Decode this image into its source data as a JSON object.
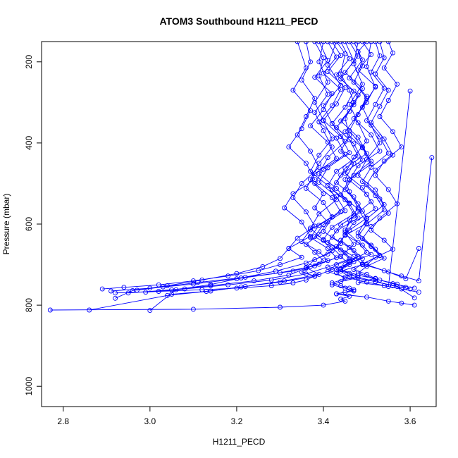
{
  "chart_data": {
    "type": "line",
    "title": "ATOM3 Southbound H1211_PECD",
    "xlabel": "H1211_PECD",
    "ylabel": "Pressure (mbar)",
    "xlim": [
      2.75,
      3.66
    ],
    "ylim": [
      1050,
      150
    ],
    "y_reversed": true,
    "x_ticks": [
      "2.8",
      "3.0",
      "3.2",
      "3.4",
      "3.6"
    ],
    "y_ticks": [
      "200",
      "400",
      "600",
      "800",
      "1000"
    ],
    "line_color": "#0000ff",
    "marker": "open-circle",
    "grid": false,
    "legend": "none",
    "series": [
      {
        "x": [
          3.43,
          3.45,
          3.44,
          3.46,
          3.47,
          3.45,
          3.46,
          3.44,
          3.47,
          3.45,
          3.46,
          3.48,
          3.46,
          3.45,
          3.47,
          3.44,
          3.46,
          3.43,
          3.45,
          3.42,
          3.44,
          3.46,
          3.47,
          3.45,
          3.43,
          3.46,
          3.44,
          3.45,
          3.4,
          3.3,
          3.1,
          2.77
        ],
        "y": [
          150,
          180,
          230,
          270,
          300,
          340,
          380,
          420,
          450,
          490,
          520,
          560,
          590,
          620,
          650,
          680,
          700,
          720,
          735,
          745,
          752,
          758,
          762,
          768,
          772,
          778,
          785,
          790,
          800,
          805,
          810,
          812
        ]
      },
      {
        "x": [
          3.5,
          3.48,
          3.49,
          3.47,
          3.5,
          3.48,
          3.46,
          3.49,
          3.51,
          3.47,
          3.45,
          3.48,
          3.5,
          3.46,
          3.44,
          3.47,
          3.49,
          3.45,
          3.43,
          3.46,
          3.48,
          3.44,
          3.42,
          3.45,
          3.47,
          3.43,
          3.5,
          3.55,
          3.58,
          3.61
        ],
        "y": [
          150,
          175,
          210,
          250,
          290,
          330,
          370,
          410,
          445,
          480,
          515,
          550,
          585,
          615,
          640,
          665,
          685,
          700,
          712,
          722,
          732,
          742,
          750,
          758,
          765,
          772,
          780,
          790,
          795,
          800
        ]
      },
      {
        "x": [
          3.38,
          3.4,
          3.39,
          3.41,
          3.38,
          3.4,
          3.42,
          3.39,
          3.37,
          3.4,
          3.38,
          3.41,
          3.39,
          3.36,
          3.38,
          3.4,
          3.37,
          3.35,
          3.38,
          3.36,
          3.33,
          3.28,
          3.2,
          3.12,
          3.02,
          2.92
        ],
        "y": [
          150,
          190,
          235,
          280,
          325,
          370,
          410,
          450,
          490,
          525,
          560,
          595,
          625,
          650,
          670,
          690,
          705,
          718,
          728,
          738,
          745,
          752,
          758,
          762,
          766,
          770
        ]
      },
      {
        "x": [
          3.52,
          3.53,
          3.51,
          3.54,
          3.52,
          3.5,
          3.53,
          3.55,
          3.51,
          3.49,
          3.52,
          3.54,
          3.5,
          3.48,
          3.51,
          3.53,
          3.49,
          3.47,
          3.5,
          3.52,
          3.48,
          3.54,
          3.58,
          3.62
        ],
        "y": [
          150,
          185,
          225,
          265,
          305,
          345,
          385,
          425,
          460,
          495,
          530,
          565,
          600,
          630,
          655,
          678,
          698,
          712,
          724,
          734,
          744,
          752,
          760,
          768
        ]
      },
      {
        "x": [
          3.36,
          3.37,
          3.35,
          3.38,
          3.36,
          3.34,
          3.37,
          3.39,
          3.35,
          3.33,
          3.36,
          3.38,
          3.34,
          3.32,
          3.35,
          3.3,
          3.25,
          3.18,
          3.1,
          3.02,
          2.94,
          2.89
        ],
        "y": [
          150,
          200,
          245,
          290,
          335,
          380,
          420,
          460,
          500,
          535,
          570,
          605,
          635,
          660,
          682,
          700,
          715,
          728,
          740,
          750,
          756,
          760
        ]
      },
      {
        "x": [
          3.47,
          3.49,
          3.46,
          3.5,
          3.48,
          3.45,
          3.49,
          3.51,
          3.46,
          3.44,
          3.48,
          3.5,
          3.45,
          3.43,
          3.47,
          3.49,
          3.44,
          3.46,
          3.52,
          3.56,
          3.6
        ],
        "y": [
          150,
          195,
          240,
          285,
          330,
          372,
          412,
          452,
          490,
          528,
          563,
          598,
          628,
          655,
          680,
          700,
          716,
          730,
          742,
          752,
          760
        ]
      },
      {
        "x": [
          3.41,
          3.43,
          3.4,
          3.44,
          3.42,
          3.39,
          3.43,
          3.45,
          3.4,
          3.38,
          3.42,
          3.44,
          3.39,
          3.37,
          3.41,
          3.43,
          3.38,
          3.3,
          3.2,
          3.1,
          3.0,
          2.91
        ],
        "y": [
          150,
          188,
          228,
          268,
          308,
          348,
          388,
          428,
          465,
          500,
          535,
          570,
          603,
          633,
          660,
          683,
          703,
          720,
          735,
          748,
          758,
          765
        ]
      },
      {
        "x": [
          3.55,
          3.56,
          3.54,
          3.57,
          3.55,
          3.53,
          3.56,
          3.58,
          3.54,
          3.52,
          3.55,
          3.57,
          3.53,
          3.51,
          3.54,
          3.56,
          3.52,
          3.5,
          3.54,
          3.58,
          3.62,
          3.65
        ],
        "y": [
          150,
          178,
          215,
          255,
          295,
          335,
          372,
          410,
          445,
          480,
          515,
          550,
          585,
          615,
          640,
          662,
          682,
          700,
          715,
          728,
          740,
          436
        ]
      },
      {
        "x": [
          3.44,
          3.46,
          3.43,
          3.47,
          3.45,
          3.42,
          3.46,
          3.48,
          3.43,
          3.41,
          3.45,
          3.47,
          3.42,
          3.4,
          3.44,
          3.46,
          3.41,
          3.36,
          3.28,
          3.18,
          3.08,
          2.99
        ],
        "y": [
          150,
          192,
          232,
          272,
          312,
          352,
          392,
          432,
          470,
          505,
          540,
          575,
          608,
          638,
          664,
          686,
          706,
          723,
          738,
          750,
          760,
          768
        ]
      },
      {
        "x": [
          3.49,
          3.51,
          3.48,
          3.52,
          3.5,
          3.47,
          3.51,
          3.53,
          3.48,
          3.46,
          3.5,
          3.52,
          3.47,
          3.45,
          3.49,
          3.51,
          3.46,
          3.44,
          3.48,
          3.53,
          3.57,
          3.59
        ],
        "y": [
          150,
          182,
          220,
          260,
          300,
          340,
          380,
          420,
          456,
          492,
          527,
          562,
          596,
          626,
          652,
          675,
          695,
          712,
          726,
          738,
          748,
          756
        ]
      },
      {
        "x": [
          3.39,
          3.41,
          3.38,
          3.42,
          3.4,
          3.37,
          3.41,
          3.43,
          3.38,
          3.36,
          3.4,
          3.42,
          3.37,
          3.35,
          3.39,
          3.41,
          3.36,
          3.32,
          3.24,
          3.14,
          3.05,
          2.95
        ],
        "y": [
          150,
          196,
          238,
          278,
          318,
          358,
          398,
          438,
          476,
          512,
          547,
          582,
          614,
          643,
          668,
          690,
          709,
          726,
          740,
          752,
          762,
          770
        ]
      },
      {
        "x": [
          3.46,
          3.48,
          3.45,
          3.49,
          3.47,
          3.44,
          3.48,
          3.5,
          3.45,
          3.43,
          3.47,
          3.49,
          3.44,
          3.42,
          3.46,
          3.48,
          3.43,
          3.41,
          3.45,
          3.5,
          3.55,
          3.6
        ],
        "y": [
          150,
          186,
          226,
          266,
          306,
          346,
          386,
          426,
          462,
          498,
          533,
          568,
          602,
          632,
          658,
          680,
          700,
          717,
          731,
          743,
          754,
          272
        ]
      },
      {
        "x": [
          3.42,
          3.44,
          3.41,
          3.45,
          3.43,
          3.4,
          3.44,
          3.46,
          3.41,
          3.39,
          3.43,
          3.45,
          3.4,
          3.38,
          3.42,
          3.44,
          3.39,
          3.33,
          3.22,
          3.11,
          3.03,
          2.97
        ],
        "y": [
          150,
          184,
          224,
          264,
          304,
          344,
          384,
          424,
          461,
          497,
          532,
          567,
          601,
          631,
          657,
          679,
          699,
          716,
          731,
          744,
          755,
          763
        ]
      },
      {
        "x": [
          3.53,
          3.54,
          3.52,
          3.55,
          3.53,
          3.51,
          3.54,
          3.56,
          3.52,
          3.5,
          3.53,
          3.55,
          3.51,
          3.49,
          3.52,
          3.54,
          3.5,
          3.48,
          3.52,
          3.56,
          3.61
        ],
        "y": [
          150,
          190,
          230,
          270,
          310,
          350,
          390,
          430,
          467,
          503,
          538,
          573,
          606,
          636,
          662,
          684,
          704,
          721,
          735,
          747,
          758
        ]
      },
      {
        "x": [
          3.45,
          3.47,
          3.44,
          3.48,
          3.46,
          3.43,
          3.47,
          3.49,
          3.44,
          3.42,
          3.46,
          3.48,
          3.43,
          3.41,
          3.45,
          3.47,
          3.42,
          3.38,
          3.3,
          3.21,
          3.14,
          3.05
        ],
        "y": [
          150,
          198,
          242,
          282,
          322,
          362,
          402,
          442,
          479,
          515,
          550,
          585,
          617,
          646,
          671,
          693,
          712,
          729,
          743,
          755,
          765,
          773
        ]
      },
      {
        "x": [
          3.4,
          3.39,
          3.41,
          3.38,
          3.4,
          3.42,
          3.39,
          3.37,
          3.41,
          3.43,
          3.39,
          3.37,
          3.4,
          3.42,
          3.38,
          3.36,
          3.39,
          3.31,
          3.22,
          3.13,
          3.04,
          2.86
        ],
        "y": [
          150,
          200,
          250,
          300,
          345,
          390,
          430,
          470,
          505,
          540,
          575,
          610,
          640,
          666,
          688,
          707,
          724,
          740,
          754,
          766,
          776,
          812
        ]
      },
      {
        "x": [
          3.48,
          3.47,
          3.49,
          3.46,
          3.48,
          3.5,
          3.47,
          3.45,
          3.49,
          3.51,
          3.47,
          3.45,
          3.48,
          3.5,
          3.46,
          3.44,
          3.47,
          3.52,
          3.57,
          3.61
        ],
        "y": [
          150,
          205,
          255,
          305,
          350,
          395,
          435,
          475,
          510,
          545,
          580,
          615,
          645,
          670,
          692,
          711,
          728,
          742,
          754,
          782
        ]
      },
      {
        "x": [
          3.34,
          3.36,
          3.33,
          3.37,
          3.35,
          3.32,
          3.36,
          3.38,
          3.33,
          3.31,
          3.35,
          3.37,
          3.32,
          3.3,
          3.26,
          3.2,
          3.12,
          3.04,
          2.96,
          2.92
        ],
        "y": [
          150,
          215,
          270,
          320,
          365,
          410,
          450,
          490,
          525,
          560,
          595,
          630,
          660,
          685,
          705,
          722,
          738,
          752,
          764,
          783
        ]
      },
      {
        "x": [
          3.43,
          3.41,
          3.44,
          3.4,
          3.42,
          3.45,
          3.41,
          3.39,
          3.43,
          3.46,
          3.42,
          3.4,
          3.44,
          3.41,
          3.36,
          3.29,
          3.21,
          3.14,
          3.06,
          3.0
        ],
        "y": [
          150,
          208,
          258,
          308,
          352,
          396,
          436,
          476,
          512,
          548,
          583,
          618,
          648,
          674,
          696,
          716,
          733,
          749,
          762,
          813
        ]
      },
      {
        "x": [
          3.51,
          3.5,
          3.52,
          3.49,
          3.51,
          3.53,
          3.5,
          3.48,
          3.52,
          3.54,
          3.5,
          3.48,
          3.51,
          3.53,
          3.49,
          3.55,
          3.59,
          3.62
        ],
        "y": [
          150,
          212,
          262,
          312,
          356,
          400,
          440,
          480,
          516,
          552,
          587,
          622,
          652,
          677,
          699,
          718,
          735,
          660
        ]
      }
    ]
  }
}
